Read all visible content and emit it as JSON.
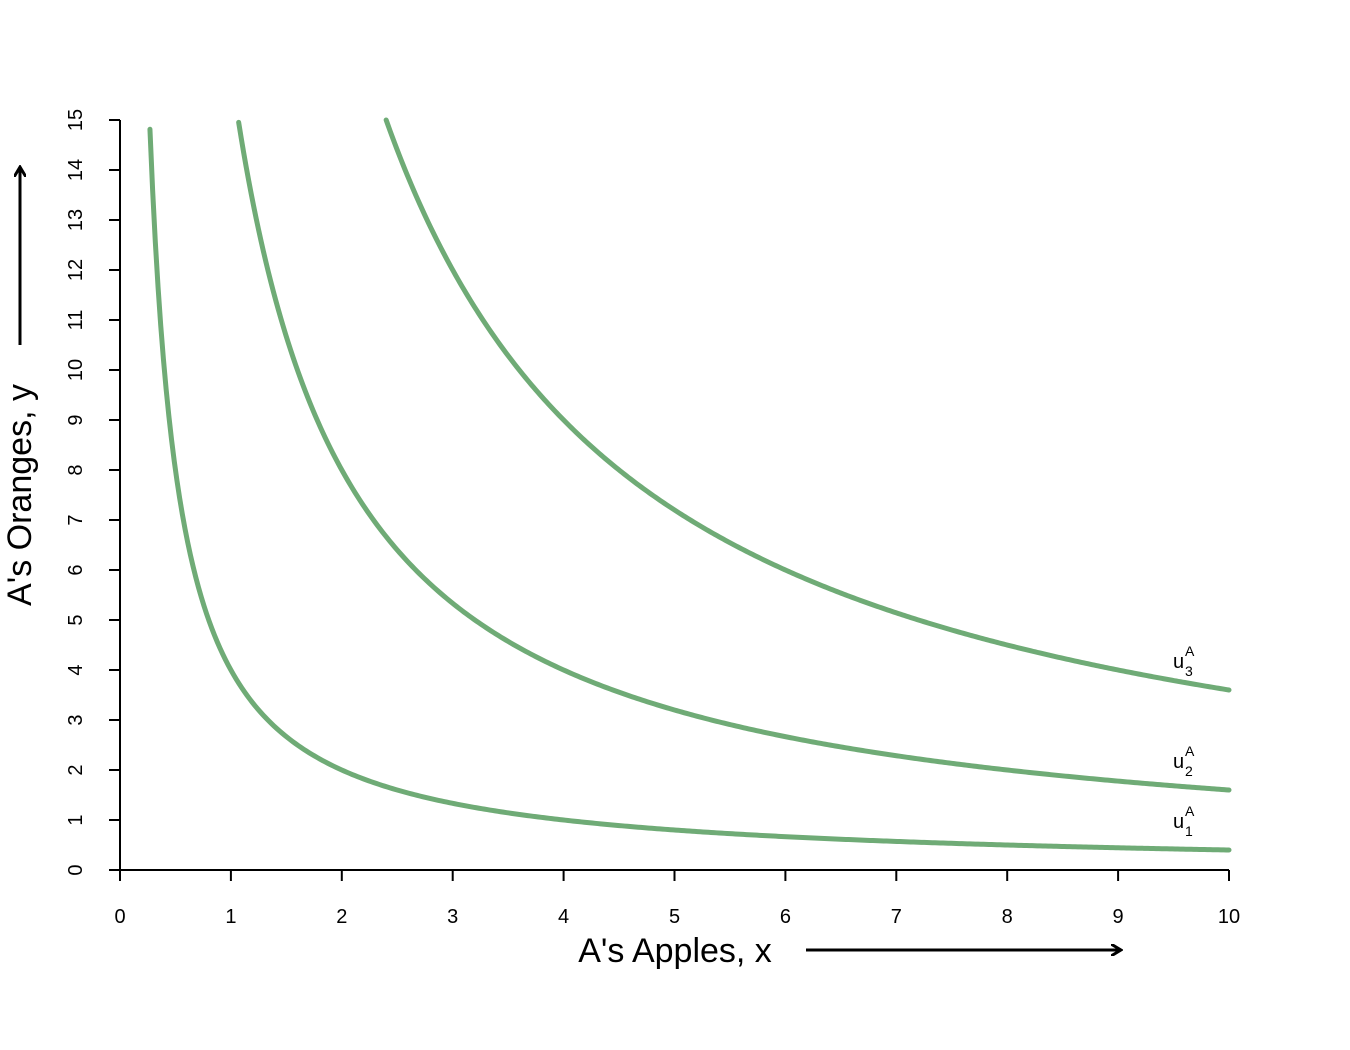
{
  "chart_data": {
    "type": "line",
    "xlabel": "A's Apples, x",
    "ylabel": "A's Oranges, y",
    "xlim": [
      0,
      10
    ],
    "ylim": [
      0,
      15
    ],
    "xticks": [
      "0",
      "1",
      "2",
      "3",
      "4",
      "5",
      "6",
      "7",
      "8",
      "9",
      "10"
    ],
    "yticks": [
      "0",
      "1",
      "2",
      "3",
      "4",
      "5",
      "6",
      "7",
      "8",
      "9",
      "10",
      "11",
      "12",
      "13",
      "14",
      "15"
    ],
    "grid": false,
    "line_color": "#6fab76",
    "series": [
      {
        "name": "u1A",
        "label_base": "u",
        "label_sub": "1",
        "label_sup": "A",
        "k": 4,
        "x_start": 0.27,
        "x_end": 10
      },
      {
        "name": "u2A",
        "label_base": "u",
        "label_sub": "2",
        "label_sup": "A",
        "k": 16,
        "x_start": 1.07,
        "x_end": 10
      },
      {
        "name": "u3A",
        "label_base": "u",
        "label_sub": "3",
        "label_sup": "A",
        "k": 36,
        "x_start": 2.4,
        "x_end": 10
      }
    ]
  }
}
